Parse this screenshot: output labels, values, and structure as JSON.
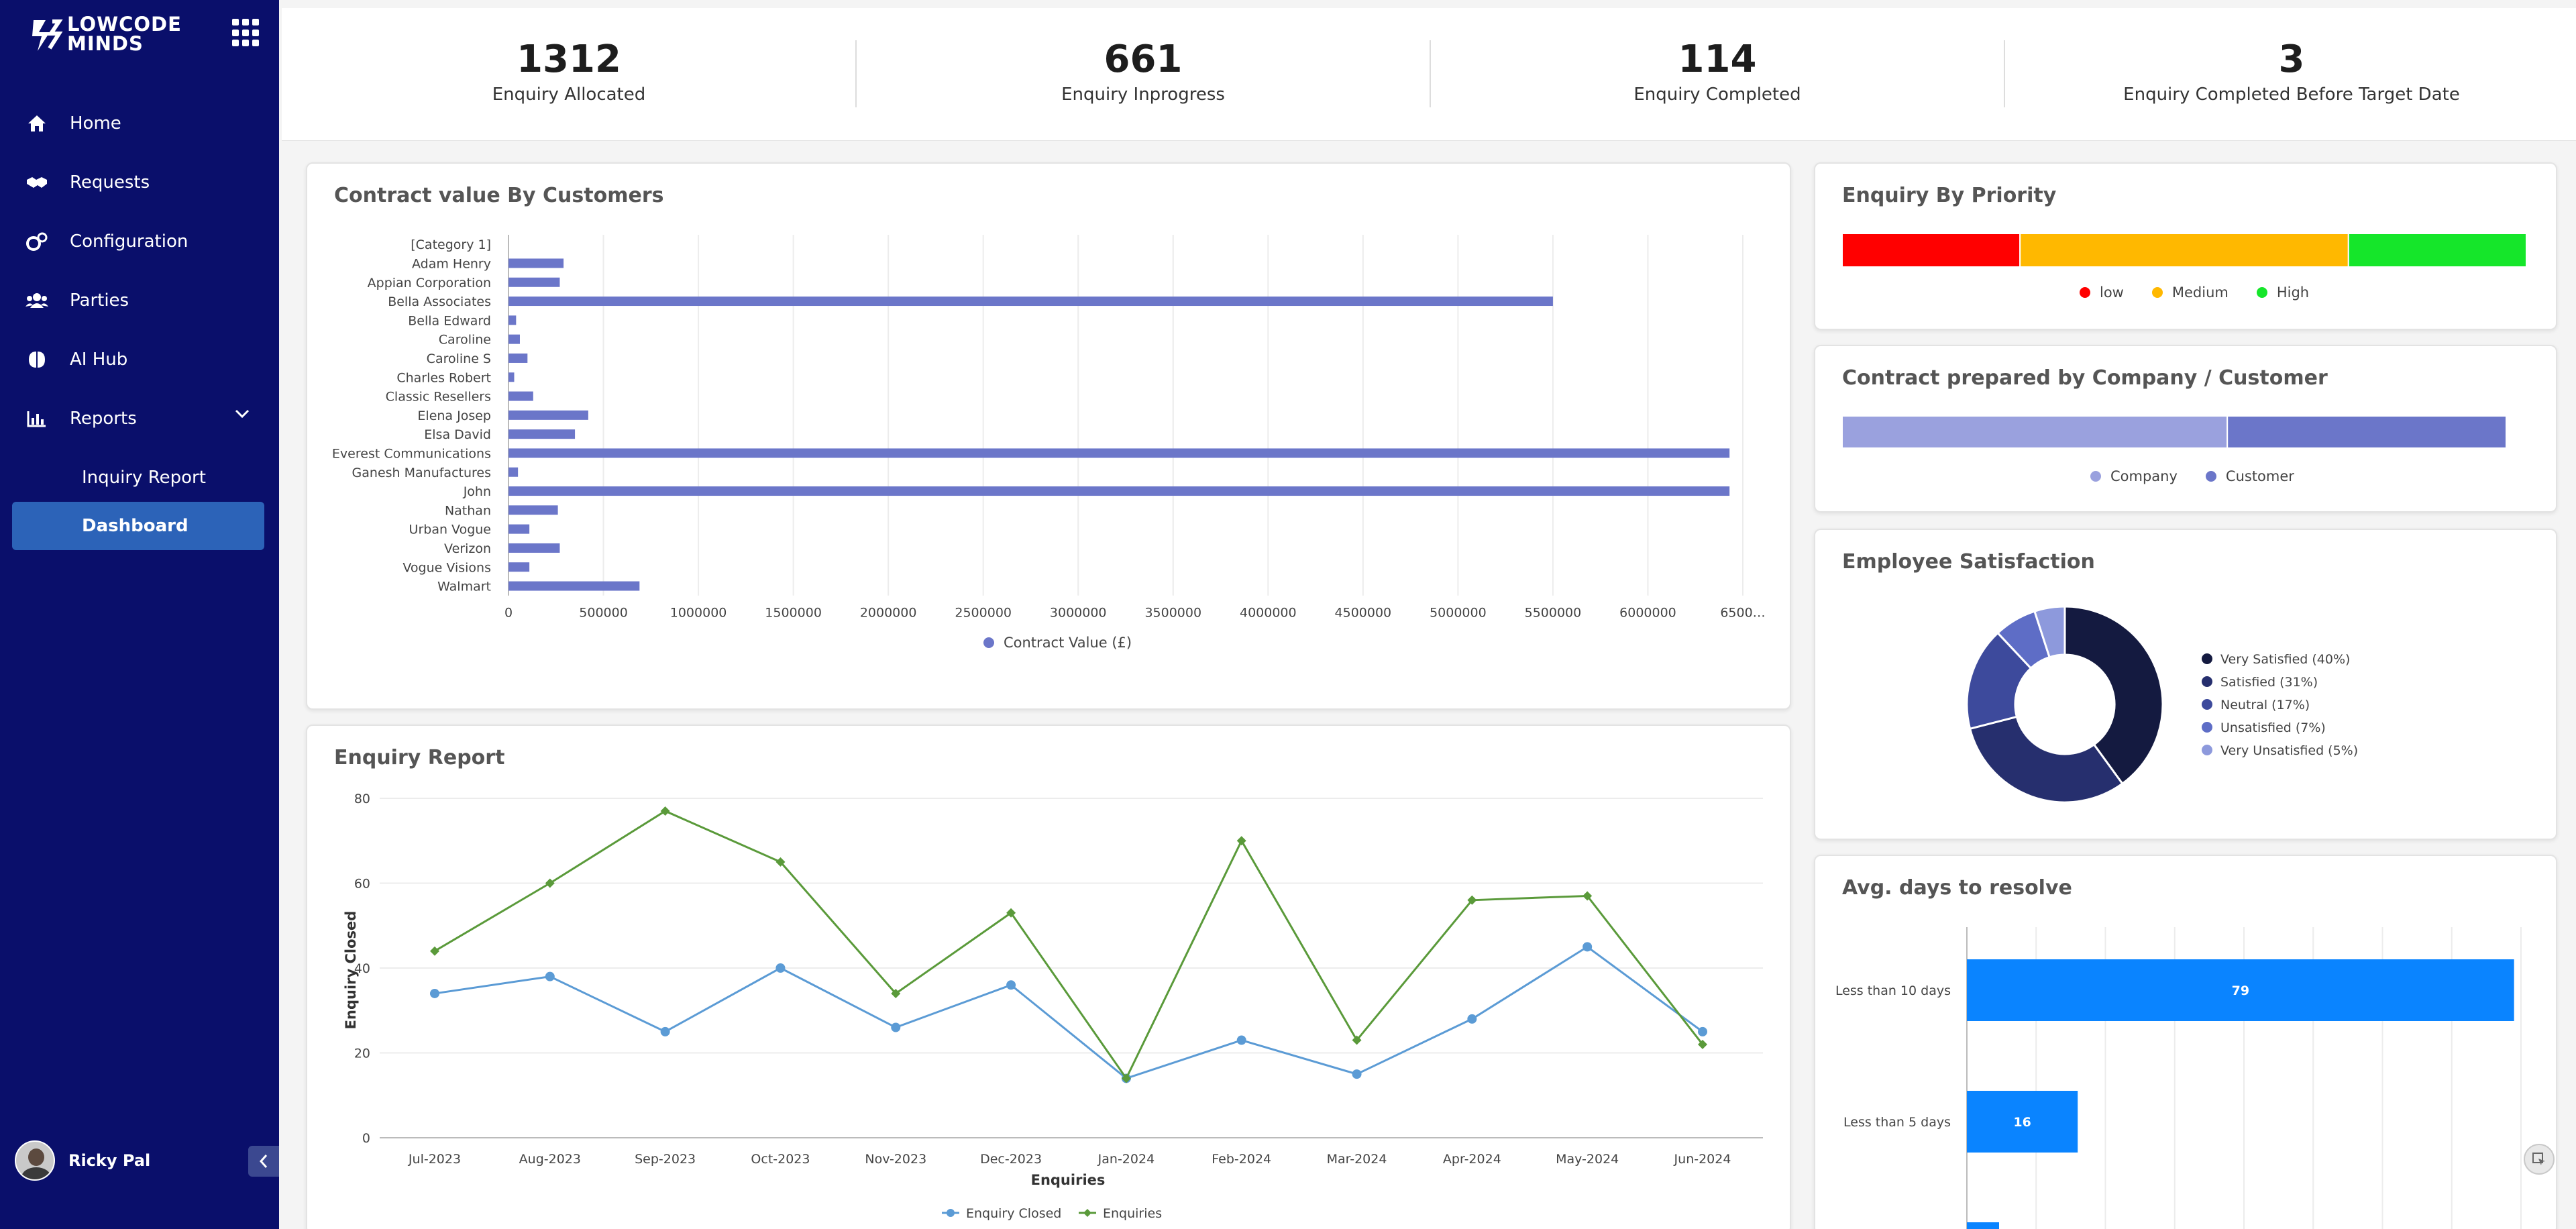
{
  "app": {
    "logo_text_line1": "LOWCODE",
    "logo_text_line2": "MINDS"
  },
  "sidebar": {
    "items": [
      {
        "label": "Home",
        "icon": "home-icon"
      },
      {
        "label": "Requests",
        "icon": "handshake-icon"
      },
      {
        "label": "Configuration",
        "icon": "cogs-icon"
      },
      {
        "label": "Parties",
        "icon": "users-icon"
      },
      {
        "label": "AI Hub",
        "icon": "brain-icon"
      },
      {
        "label": "Reports",
        "icon": "chart-icon"
      }
    ],
    "sub_items": [
      {
        "label": "Inquiry Report"
      }
    ],
    "active_item": "Dashboard",
    "user_name": "Ricky Pal"
  },
  "stats": [
    {
      "value": "1312",
      "label": "Enquiry Allocated"
    },
    {
      "value": "661",
      "label": "Enquiry Inprogress"
    },
    {
      "value": "114",
      "label": "Enquiry Completed"
    },
    {
      "value": "3",
      "label": "Enquiry Completed Before Target Date"
    }
  ],
  "colors": {
    "sidebar_bg": "#0a0f6b",
    "active": "#2c63b8",
    "bar": "#6b76c9",
    "low": "#ff0000",
    "medium": "#ffb800",
    "high": "#15e62a",
    "company": "#9aa1de",
    "customer": "#6b76c9",
    "closed": "#5b9bd5",
    "enquiries": "#5a9a3a",
    "resolve_bar": "#0a84ff"
  },
  "chart_data": [
    {
      "type": "bar",
      "title": "Contract value By Customers",
      "orientation": "horizontal",
      "categories": [
        "[Category 1]",
        "Adam Henry",
        "Appian Corporation",
        "Bella Associates",
        "Bella Edward",
        "Caroline",
        "Caroline S",
        "Charles Robert",
        "Classic Resellers",
        "Elena Josep",
        "Elsa David",
        "Everest Communications",
        "Ganesh Manufactures",
        "John",
        "Nathan",
        "Urban Vogue",
        "Verizon",
        "Vogue Visions",
        "Walmart"
      ],
      "values": [
        0,
        290000,
        270000,
        5500000,
        40000,
        60000,
        100000,
        30000,
        130000,
        420000,
        350000,
        6430000,
        50000,
        6430000,
        260000,
        110000,
        270000,
        110000,
        690000
      ],
      "xticks": [
        "0",
        "500000",
        "1000000",
        "1500000",
        "2000000",
        "2500000",
        "3000000",
        "3500000",
        "4000000",
        "4500000",
        "5000000",
        "5500000",
        "6000000",
        "6500…"
      ],
      "xlim": [
        0,
        6500000
      ],
      "series_name": "Contract Value (£)"
    },
    {
      "type": "bar",
      "title": "Enquiry By Priority",
      "orientation": "stacked-horizontal",
      "series": [
        {
          "name": "low",
          "value": 26
        },
        {
          "name": "Medium",
          "value": 48
        },
        {
          "name": "High",
          "value": 26
        }
      ]
    },
    {
      "type": "bar",
      "title": "Contract prepared by Company / Customer",
      "orientation": "stacked-horizontal",
      "series": [
        {
          "name": "Company",
          "value": 58
        },
        {
          "name": "Customer",
          "value": 42
        }
      ]
    },
    {
      "type": "pie",
      "title": "Employee Satisfaction",
      "donut": true,
      "slices": [
        {
          "name": "Very Satisfied (40%)",
          "value": 40,
          "color": "#141a40"
        },
        {
          "name": "Satisfied (31%)",
          "value": 31,
          "color": "#262f6e"
        },
        {
          "name": "Neutral (17%)",
          "value": 17,
          "color": "#3d4a9c"
        },
        {
          "name": "Unsatisfied (7%)",
          "value": 7,
          "color": "#5e6dc6"
        },
        {
          "name": "Very Unsatisfied (5%)",
          "value": 5,
          "color": "#8d99dc"
        }
      ]
    },
    {
      "type": "line",
      "title": "Enquiry Report",
      "categories": [
        "Jul-2023",
        "Aug-2023",
        "Sep-2023",
        "Oct-2023",
        "Nov-2023",
        "Dec-2023",
        "Jan-2024",
        "Feb-2024",
        "Mar-2024",
        "Apr-2024",
        "May-2024",
        "Jun-2024"
      ],
      "series": [
        {
          "name": "Enquiry Closed",
          "values": [
            34,
            38,
            25,
            40,
            26,
            36,
            14,
            23,
            15,
            28,
            45,
            25
          ]
        },
        {
          "name": "Enquiries",
          "values": [
            44,
            60,
            77,
            65,
            34,
            53,
            14,
            70,
            23,
            56,
            57,
            22
          ]
        }
      ],
      "xlabel": "Enquiries",
      "ylabel": "Enquiry Closed",
      "yticks": [
        "0",
        "20",
        "40",
        "60",
        "80"
      ],
      "ylim": [
        0,
        80
      ],
      "grid": true
    },
    {
      "type": "bar",
      "title": "Avg. days to resolve",
      "orientation": "horizontal",
      "categories": [
        "Less than 10 days",
        "Less than 5 days"
      ],
      "values": [
        79,
        16
      ],
      "xlim": [
        0,
        80
      ]
    }
  ]
}
